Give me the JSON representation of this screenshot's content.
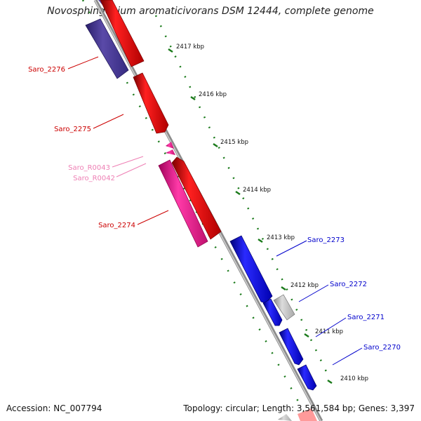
{
  "title": "Novosphingobium aromaticivorans DSM 12444, complete genome",
  "footer": {
    "accession": "Accession: NC_007794",
    "summary": "Topology: circular; Length: 3,561,584 bp; Genes: 3,397"
  },
  "scale_labels": [
    "2417 kbp",
    "2416 kbp",
    "2415 kbp",
    "2414 kbp",
    "2413 kbp",
    "2412 kbp",
    "2411 kbp",
    "2410 kbp"
  ],
  "genes_left": [
    {
      "id": "Saro_2276",
      "color": "#cc0000"
    },
    {
      "id": "Saro_2275",
      "color": "#cc0000"
    },
    {
      "id": "Saro_R0043",
      "color": "#ee7fb4"
    },
    {
      "id": "Saro_R0042",
      "color": "#ee7fb4"
    },
    {
      "id": "Saro_2274",
      "color": "#cc0000"
    }
  ],
  "genes_right": [
    {
      "id": "Saro_2273",
      "color": "#0000cc"
    },
    {
      "id": "Saro_2272",
      "color": "#0000cc"
    },
    {
      "id": "Saro_2271",
      "color": "#0000cc"
    },
    {
      "id": "Saro_2270",
      "color": "#0000cc"
    }
  ],
  "colors": {
    "cds_forward": "#ee0000",
    "cds_reverse": "#0000ee",
    "rna": "#ee1493",
    "reverse_dark": "#3d2f8f",
    "pseudo": "#b0b0b0",
    "backbone": "#888888",
    "tick": "#1a7a1a"
  }
}
